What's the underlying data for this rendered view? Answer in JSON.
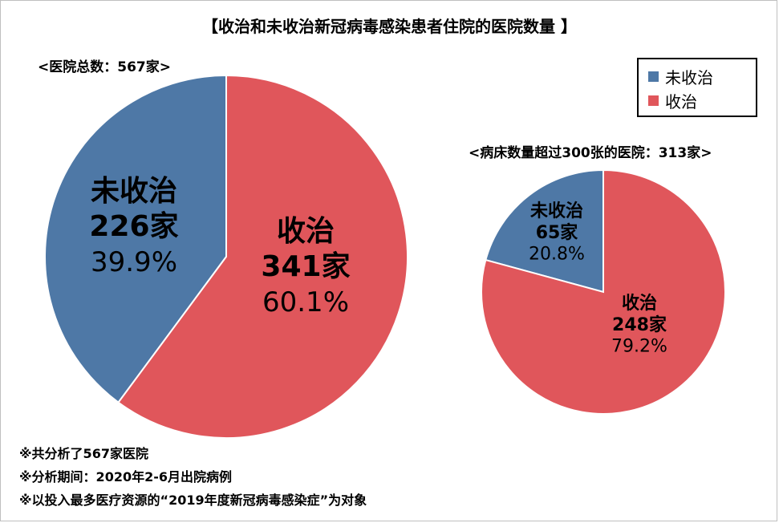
{
  "title": "【收治和未收治新冠病毒感染患者住院的医院数量 】",
  "legend": [
    {
      "label": "未收治",
      "color": "#4e78a6"
    },
    {
      "label": "收治",
      "color": "#e0565b"
    }
  ],
  "footnotes": [
    "※共分析了567家医院",
    "※分析期间：2020年2-6月出院病例",
    "※以投入最多医疗资源的“2019年度新冠病毒感染症”为对象"
  ],
  "chart_data": [
    {
      "type": "pie",
      "subtitle": "<医院总数：567家>",
      "slices": [
        {
          "name": "未收治",
          "count_label": "226家",
          "value": 226,
          "percent_label": "39.9%",
          "color": "#4e78a6"
        },
        {
          "name": "收治",
          "count_label": "341家",
          "value": 341,
          "percent_label": "60.1%",
          "color": "#e0565b"
        }
      ]
    },
    {
      "type": "pie",
      "subtitle": "<病床数量超过300张的医院：313家>",
      "slices": [
        {
          "name": "未收治",
          "count_label": "65家",
          "value": 65,
          "percent_label": "20.8%",
          "color": "#4e78a6"
        },
        {
          "name": "收治",
          "count_label": "248家",
          "value": 248,
          "percent_label": "79.2%",
          "color": "#e0565b"
        }
      ]
    }
  ]
}
